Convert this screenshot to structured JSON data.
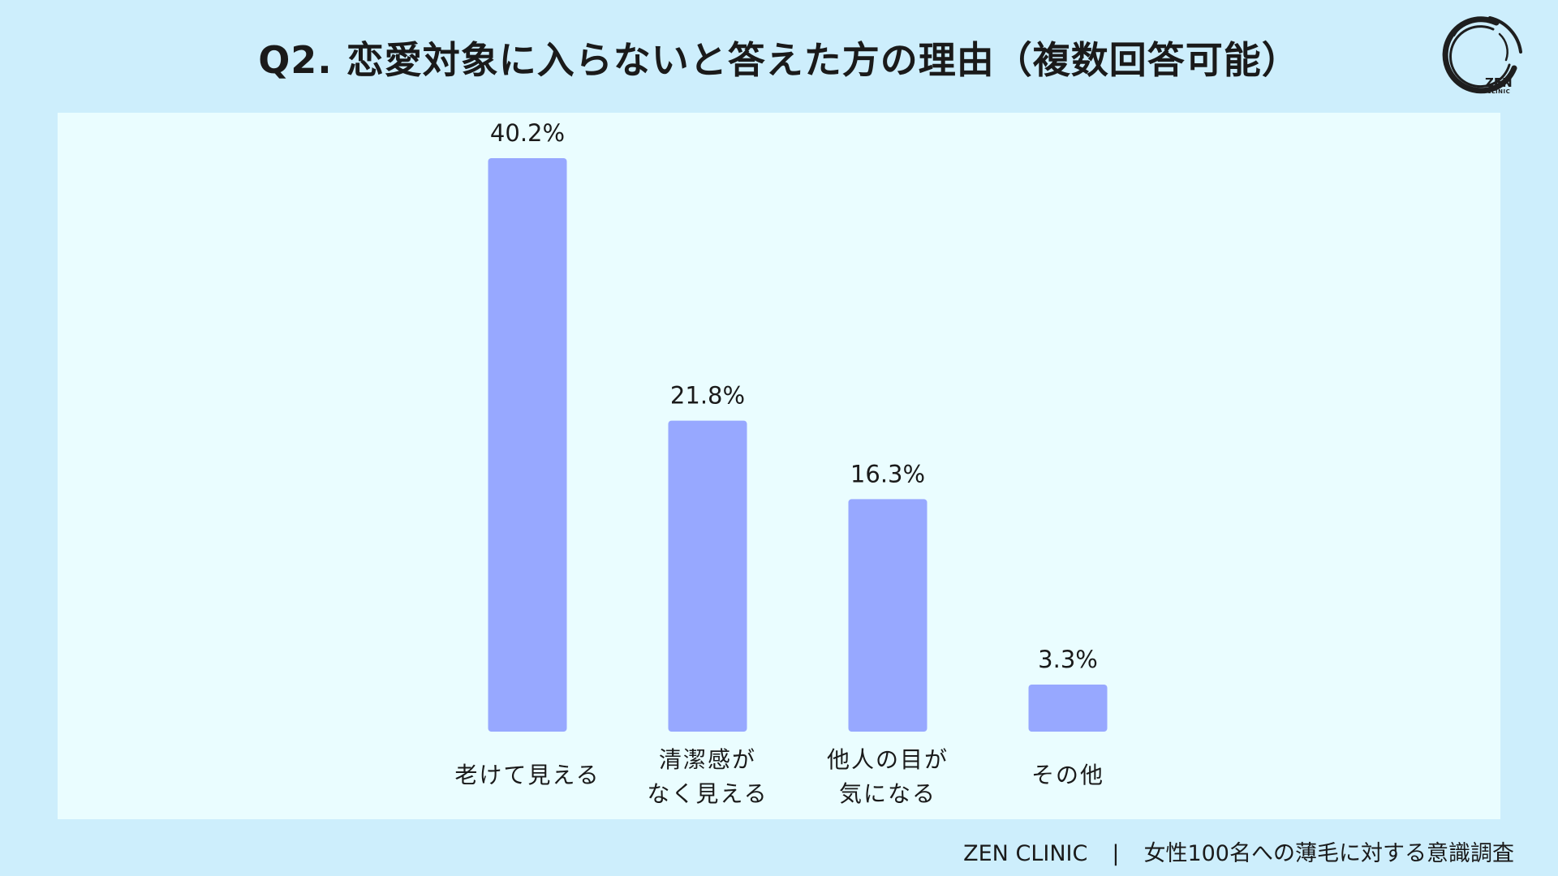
{
  "title": "Q2. 恋愛対象に入らないと答えた方の理由（複数回答可能）",
  "logo": {
    "name": "ZEN",
    "sub": "CLINIC"
  },
  "footer": {
    "brand": "ZEN CLINIC",
    "separator": "|",
    "survey": "女性100名への薄毛に対する意識調査"
  },
  "colors": {
    "background": "#cdeefc",
    "plot_background": "#eafdff",
    "bar": "#97a8ff"
  },
  "chart_data": {
    "type": "bar",
    "categories": [
      [
        "老けて見える"
      ],
      [
        "清潔感が",
        "なく見える"
      ],
      [
        "他人の目が",
        "気になる"
      ],
      [
        "その他"
      ]
    ],
    "values": [
      40.2,
      21.8,
      16.3,
      3.3
    ],
    "value_labels": [
      "40.2%",
      "21.8%",
      "16.3%",
      "3.3%"
    ],
    "unit": "%",
    "ylim": [
      0,
      40.2
    ],
    "grid": false,
    "legend": "none"
  }
}
